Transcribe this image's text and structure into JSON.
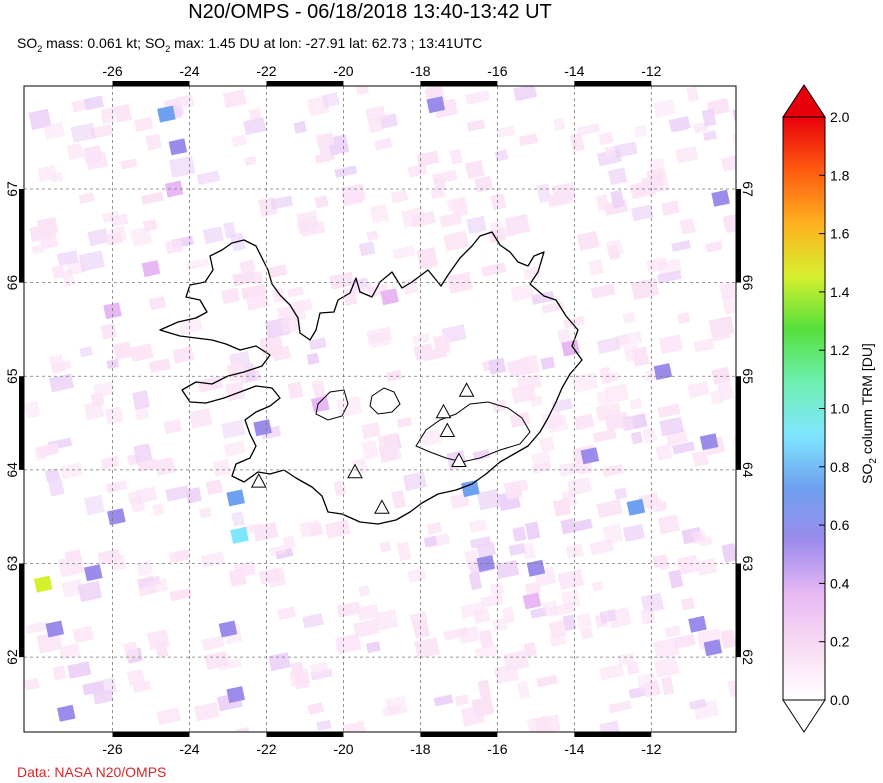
{
  "header": {
    "title": "N20/OMPS - 06/18/2018 13:40-13:42 UT",
    "sub_a": "SO",
    "sub_a_sub": "2",
    "sub_b": " mass: 0.061 kt; SO",
    "sub_b_sub": "2",
    "sub_c": " max: 1.45 DU at lon: -27.91 lat: 62.73 ; 13:41UTC"
  },
  "credit": "Data: NASA N20/OMPS",
  "chart_data": {
    "type": "heatmap",
    "title": "N20/OMPS - 06/18/2018 13:40-13:42 UT",
    "map": {
      "lon_range": [
        -28.3,
        -9.8
      ],
      "lat_range": [
        61.2,
        68.1
      ],
      "lon_ticks": [
        -26,
        -24,
        -22,
        -20,
        -18,
        -16,
        -14,
        -12
      ],
      "lat_ticks": [
        62,
        63,
        64,
        65,
        66,
        67
      ],
      "grid": true,
      "region": "Iceland"
    },
    "colorbar": {
      "label": "SO2 column TRM [DU]",
      "label_main": "SO",
      "label_sub": "2",
      "label_rest": " column TRM [DU]",
      "min": 0.0,
      "max": 2.0,
      "ticks": [
        "0.0",
        "0.2",
        "0.4",
        "0.6",
        "0.8",
        "1.0",
        "1.2",
        "1.4",
        "1.6",
        "1.8",
        "2.0"
      ],
      "colors": [
        "#ffffff",
        "#f9dcf3",
        "#e7b8f3",
        "#9b8cec",
        "#6fa1f0",
        "#7fe6ff",
        "#6ef0b0",
        "#55e03c",
        "#d7f02e",
        "#ffb020",
        "#ff5a10",
        "#e8000a"
      ]
    },
    "so2_mass_kt": 0.061,
    "so2_max_du": 1.45,
    "max_location": {
      "lon": -27.91,
      "lat": 62.73
    },
    "max_time": "13:41UTC",
    "cells": [
      {
        "lon": -27.8,
        "lat": 62.78,
        "v": 1.45
      },
      {
        "lon": -27.5,
        "lat": 62.3,
        "v": 0.62
      },
      {
        "lon": -27.2,
        "lat": 61.4,
        "v": 0.62
      },
      {
        "lon": -26.5,
        "lat": 62.9,
        "v": 0.5
      },
      {
        "lon": -25.9,
        "lat": 63.5,
        "v": 0.6
      },
      {
        "lon": -24.6,
        "lat": 67.8,
        "v": 0.65
      },
      {
        "lon": -24.3,
        "lat": 67.45,
        "v": 0.6
      },
      {
        "lon": -24.4,
        "lat": 67.0,
        "v": 0.45
      },
      {
        "lon": -22.7,
        "lat": 63.3,
        "v": 0.9
      },
      {
        "lon": -22.8,
        "lat": 63.7,
        "v": 0.7
      },
      {
        "lon": -22.1,
        "lat": 64.45,
        "v": 0.6
      },
      {
        "lon": -23.0,
        "lat": 62.3,
        "v": 0.6
      },
      {
        "lon": -22.8,
        "lat": 61.6,
        "v": 0.6
      },
      {
        "lon": -17.6,
        "lat": 67.9,
        "v": 0.6
      },
      {
        "lon": -16.7,
        "lat": 63.8,
        "v": 0.7
      },
      {
        "lon": -16.3,
        "lat": 63.0,
        "v": 0.6
      },
      {
        "lon": -15.0,
        "lat": 62.95,
        "v": 0.55
      },
      {
        "lon": -15.1,
        "lat": 62.6,
        "v": 0.45
      },
      {
        "lon": -13.6,
        "lat": 64.15,
        "v": 0.6
      },
      {
        "lon": -12.4,
        "lat": 63.6,
        "v": 0.65
      },
      {
        "lon": -10.5,
        "lat": 64.3,
        "v": 0.5
      },
      {
        "lon": -10.4,
        "lat": 62.1,
        "v": 0.6
      },
      {
        "lon": -10.8,
        "lat": 62.35,
        "v": 0.55
      },
      {
        "lon": -10.2,
        "lat": 66.9,
        "v": 0.55
      },
      {
        "lon": -11.7,
        "lat": 65.05,
        "v": 0.5
      },
      {
        "lon": -25.0,
        "lat": 66.15,
        "v": 0.4
      },
      {
        "lon": -20.6,
        "lat": 64.7,
        "v": 0.4
      },
      {
        "lon": -18.8,
        "lat": 65.85,
        "v": 0.35
      },
      {
        "lon": -14.1,
        "lat": 65.3,
        "v": 0.4
      },
      {
        "lon": -26.0,
        "lat": 65.7,
        "v": 0.35
      }
    ],
    "volcanoes": [
      {
        "lon": -22.2,
        "lat": 63.88
      },
      {
        "lon": -19.7,
        "lat": 63.98
      },
      {
        "lon": -19.0,
        "lat": 63.6
      },
      {
        "lon": -17.4,
        "lat": 64.62
      },
      {
        "lon": -17.3,
        "lat": 64.42
      },
      {
        "lon": -16.8,
        "lat": 64.85
      },
      {
        "lon": -17.0,
        "lat": 64.1
      }
    ]
  }
}
